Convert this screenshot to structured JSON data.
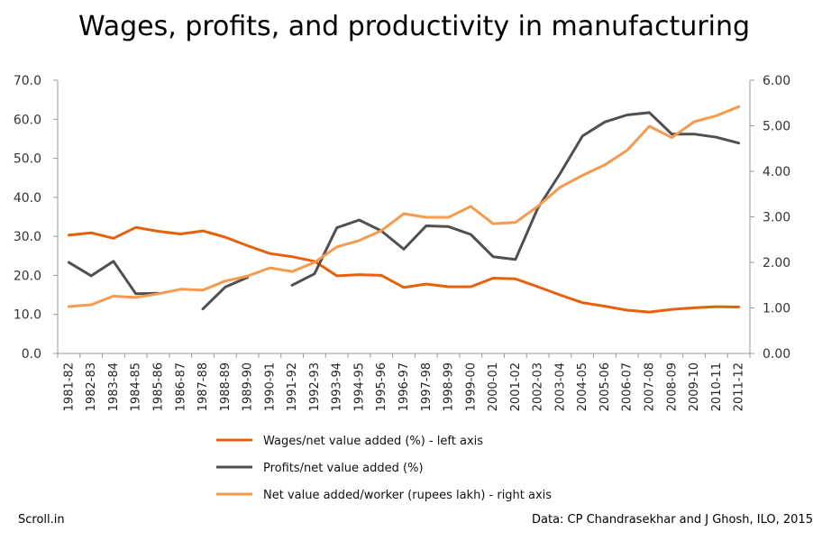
{
  "header": {
    "title": "Wages, profits, and productivity in manufacturing"
  },
  "footer": {
    "source_left": "Scroll.in",
    "source_right": "Data: CP Chandrasekhar and J Ghosh, ILO, 2015"
  },
  "chart_data": {
    "type": "line",
    "title": "Wages, profits, and productivity in manufacturing",
    "categories": [
      "1981-82",
      "1982-83",
      "1983-84",
      "1984-85",
      "1985-86",
      "1986-87",
      "1987-88",
      "1988-89",
      "1989-90",
      "1990-91",
      "1991-92",
      "1992-93",
      "1993-94",
      "1994-95",
      "1995-96",
      "1996-97",
      "1997-98",
      "1998-99",
      "1999-00",
      "2000-01",
      "2001-02",
      "2002-03",
      "2003-04",
      "2004-05",
      "2005-06",
      "2006-07",
      "2007-08",
      "2008-09",
      "2009-10",
      "2010-11",
      "2011-12"
    ],
    "left_axis": {
      "ylim": [
        0,
        70
      ],
      "ticks": [
        "0.0",
        "10.0",
        "20.0",
        "30.0",
        "40.0",
        "50.0",
        "60.0",
        "70.0"
      ]
    },
    "right_axis": {
      "ylim": [
        0,
        6
      ],
      "ticks": [
        "0.00",
        "1.00",
        "2.00",
        "3.00",
        "4.00",
        "5.00",
        "6.00"
      ]
    },
    "grid": false,
    "legend_position": "bottom",
    "series": [
      {
        "name": "Wages/net value added (%) - left axis",
        "axis": "left",
        "color": "#e8600c",
        "values": [
          30.3,
          30.9,
          29.5,
          32.3,
          31.3,
          30.6,
          31.4,
          29.8,
          27.6,
          25.6,
          24.8,
          23.6,
          19.9,
          20.2,
          20.0,
          16.9,
          17.8,
          17.1,
          17.1,
          19.3,
          19.1,
          17.1,
          15.0,
          13.0,
          12.1,
          11.1,
          10.6,
          11.3,
          11.7,
          12.0,
          11.9
        ]
      },
      {
        "name": "Profits/net value added (%)",
        "axis": "left",
        "color": "#505050",
        "values": [
          23.3,
          19.9,
          23.6,
          15.3,
          15.4,
          null,
          11.4,
          17.0,
          19.5,
          null,
          17.5,
          20.4,
          32.2,
          34.2,
          31.4,
          26.7,
          32.7,
          32.5,
          30.5,
          24.8,
          24.1,
          37.2,
          46.1,
          55.7,
          59.3,
          61.1,
          61.7,
          56.2,
          56.2,
          55.4,
          53.9
        ]
      },
      {
        "name": "Net value added/worker (rupees lakh) - right axis",
        "axis": "right",
        "color": "#f59a4e",
        "values": [
          1.03,
          1.07,
          1.26,
          1.23,
          1.31,
          1.41,
          1.39,
          1.59,
          1.7,
          1.88,
          1.8,
          2.0,
          2.34,
          2.48,
          2.7,
          3.07,
          2.99,
          2.99,
          3.23,
          2.85,
          2.88,
          3.23,
          3.65,
          3.91,
          4.14,
          4.46,
          4.99,
          4.74,
          5.09,
          5.22,
          5.42
        ]
      }
    ]
  }
}
